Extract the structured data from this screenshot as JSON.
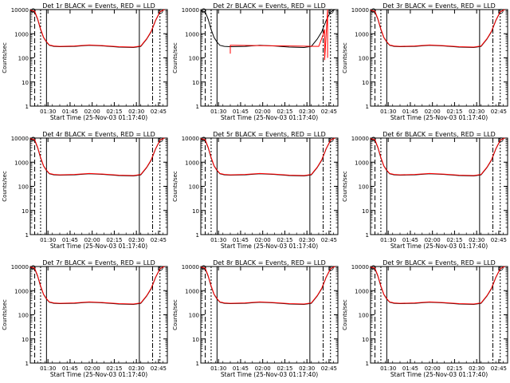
{
  "figure": {
    "ylabel": "Counts/sec",
    "xlabel": "Start Time (25-Nov-03 01:17:40)",
    "x_tick_labels": [
      "01:30",
      "01:45",
      "02:00",
      "02:15",
      "02:30",
      "02:45"
    ],
    "y_tick_labels": [
      "1",
      "10",
      "100",
      "1000",
      "10000"
    ],
    "colors": {
      "events": "#000000",
      "lld": "#ff0000"
    }
  },
  "chart_data": [
    {
      "type": "line",
      "title": "Det 1r BLACK = Events, RED = LLD"
    },
    {
      "type": "line",
      "title": "Det 2r BLACK = Events, RED = LLD"
    },
    {
      "type": "line",
      "title": "Det 3r BLACK = Events, RED = LLD"
    },
    {
      "type": "line",
      "title": "Det 4r BLACK = Events, RED = LLD"
    },
    {
      "type": "line",
      "title": "Det 5r BLACK = Events, RED = LLD"
    },
    {
      "type": "line",
      "title": "Det 6r BLACK = Events, RED = LLD"
    },
    {
      "type": "line",
      "title": "Det 7r BLACK = Events, RED = LLD"
    },
    {
      "type": "line",
      "title": "Det 8r BLACK = Events, RED = LLD"
    },
    {
      "type": "line",
      "title": "Det 9r BLACK = Events, RED = LLD"
    }
  ],
  "series_template": {
    "x_unit": "minutes since 01:17:40",
    "ylim": [
      1,
      10000
    ],
    "xlim": [
      0,
      93
    ],
    "yscale": "log",
    "events": {
      "name": "Events",
      "x": [
        0,
        3,
        5,
        7,
        9,
        11,
        13,
        16,
        20,
        30,
        40,
        50,
        60,
        70,
        75,
        79,
        82,
        85,
        88,
        91
      ],
      "y": [
        9000,
        8000,
        4000,
        1500,
        700,
        450,
        330,
        300,
        290,
        300,
        330,
        310,
        280,
        270,
        300,
        600,
        1200,
        3500,
        8000,
        10000
      ]
    },
    "lld": {
      "name": "LLD",
      "x": [
        0,
        3,
        5,
        7,
        9,
        11,
        13,
        16,
        20,
        30,
        40,
        50,
        60,
        70,
        75,
        79,
        82,
        85,
        88,
        91
      ],
      "y": [
        9500,
        8500,
        4200,
        1600,
        720,
        470,
        340,
        310,
        300,
        310,
        340,
        320,
        290,
        280,
        310,
        620,
        1250,
        3600,
        8200,
        10000
      ]
    },
    "event_markers_x": [
      3,
      7,
      11,
      74,
      83,
      88
    ]
  },
  "variants": {
    "det2_lld_step": {
      "x": [
        20,
        20,
        22,
        80,
        83,
        84,
        84,
        86,
        86
      ],
      "y": [
        150,
        330,
        330,
        300,
        900,
        1500,
        80,
        10000,
        100
      ]
    }
  }
}
